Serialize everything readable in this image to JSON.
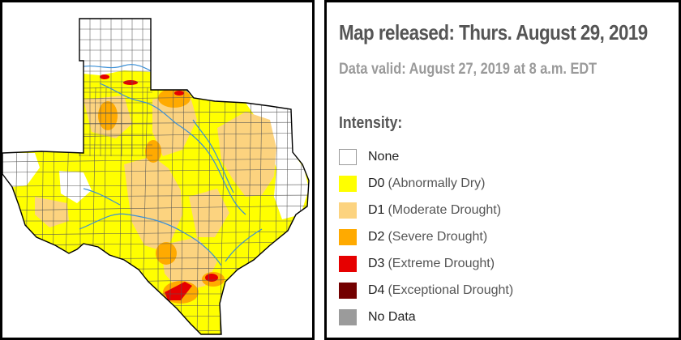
{
  "header": {
    "released": "Map released: Thurs. August 29, 2019",
    "valid": "Data valid: August 27, 2019 at 8 a.m. EDT"
  },
  "legend": {
    "title": "Intensity:",
    "items": [
      {
        "code": "None",
        "desc": "",
        "color": "#ffffff",
        "border": "#9a9a9a"
      },
      {
        "code": "D0",
        "desc": "(Abnormally Dry)",
        "color": "#ffff00",
        "border": "#ffff00"
      },
      {
        "code": "D1",
        "desc": "(Moderate Drought)",
        "color": "#fcd37f",
        "border": "#fcd37f"
      },
      {
        "code": "D2",
        "desc": "(Severe Drought)",
        "color": "#ffaa00",
        "border": "#ffaa00"
      },
      {
        "code": "D3",
        "desc": "(Extreme Drought)",
        "color": "#e60000",
        "border": "#e60000"
      },
      {
        "code": "D4",
        "desc": "(Exceptional Drought)",
        "color": "#730000",
        "border": "#730000"
      },
      {
        "code": "No Data",
        "desc": "",
        "color": "#9b9b9b",
        "border": "#9b9b9b"
      }
    ]
  },
  "map": {
    "region": "Texas",
    "colors": {
      "none": "#ffffff",
      "d0": "#ffff00",
      "d1": "#fcd37f",
      "d2": "#ffaa00",
      "d3": "#e60000",
      "d4": "#730000",
      "rivers": "#3a8fd6",
      "county_lines": "#555555",
      "state_outline": "#000000"
    }
  }
}
